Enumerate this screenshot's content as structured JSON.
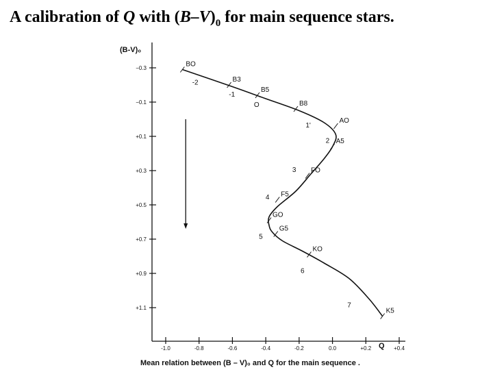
{
  "slide_title": {
    "prefix": "A calibration of ",
    "q": "Q",
    "mid": " with (",
    "bv": "B–V",
    "close": ")",
    "sub": "0",
    "suffix": " for main sequence stars."
  },
  "chart_data": {
    "type": "line",
    "title": "",
    "xlabel": "Q",
    "ylabel": "(B-V)₀",
    "caption": "Mean relation between (B – V)₀ and Q for the main sequence .",
    "xlim": [
      -1.1,
      0.42
    ],
    "ylim": [
      -0.3,
      1.28
    ],
    "y_inverted": true,
    "x_ticks": [
      -1.0,
      -0.8,
      -0.6,
      -0.4,
      -0.2,
      0.0,
      0.2,
      0.4
    ],
    "x_tick_labels": [
      "-1.0",
      "-0.8",
      "-0.6",
      "-0.4",
      "-0.2",
      "0.0",
      "+0.2",
      "+0.4"
    ],
    "y_ticks": [
      -0.3,
      -0.1,
      0.1,
      0.3,
      0.5,
      0.7,
      0.9,
      1.1
    ],
    "y_tick_labels": [
      "−0.3",
      "−0.1",
      "+0.1",
      "+0.3",
      "+0.5",
      "+0.7",
      "+0.9",
      "+1.1"
    ],
    "series": [
      {
        "x": [
          -0.9,
          -0.6,
          -0.4,
          -0.2,
          -0.05,
          0.02,
          0.0,
          -0.05,
          -0.13,
          -0.22,
          -0.33,
          -0.38,
          -0.38,
          -0.36,
          -0.3,
          -0.18,
          -0.05,
          0.1,
          0.22,
          0.3
        ],
        "y": [
          -0.29,
          -0.19,
          -0.12,
          -0.05,
          0.02,
          0.09,
          0.16,
          0.23,
          0.32,
          0.42,
          0.51,
          0.57,
          0.62,
          0.66,
          0.71,
          0.77,
          0.84,
          0.93,
          1.05,
          1.15
        ]
      }
    ],
    "spectral_labels": [
      {
        "text": "BO",
        "x": -0.9,
        "y": -0.29
      },
      {
        "text": "B3",
        "x": -0.62,
        "y": -0.2
      },
      {
        "text": "B5",
        "x": -0.45,
        "y": -0.14
      },
      {
        "text": "B8",
        "x": -0.22,
        "y": -0.06
      },
      {
        "text": "AO",
        "x": 0.02,
        "y": 0.04
      },
      {
        "text": "A5",
        "x": 0.0,
        "y": 0.16
      },
      {
        "text": "FO",
        "x": -0.15,
        "y": 0.33
      },
      {
        "text": "F5",
        "x": -0.33,
        "y": 0.47
      },
      {
        "text": "GO",
        "x": -0.38,
        "y": 0.59
      },
      {
        "text": "G5",
        "x": -0.34,
        "y": 0.67
      },
      {
        "text": "KO",
        "x": -0.14,
        "y": 0.79
      },
      {
        "text": "K5",
        "x": 0.3,
        "y": 1.15
      }
    ],
    "q_labels": [
      {
        "text": "-2",
        "x": -0.8,
        "y": -0.25
      },
      {
        "text": "-1",
        "x": -0.58,
        "y": -0.18
      },
      {
        "text": "O",
        "x": -0.43,
        "y": -0.12
      },
      {
        "text": "1'",
        "x": -0.12,
        "y": 0.0
      },
      {
        "text": "2",
        "x": 0.0,
        "y": 0.09
      },
      {
        "text": "3",
        "x": -0.2,
        "y": 0.26
      },
      {
        "text": "4",
        "x": -0.36,
        "y": 0.42
      },
      {
        "text": "5",
        "x": -0.4,
        "y": 0.65
      },
      {
        "text": "6",
        "x": -0.15,
        "y": 0.85
      },
      {
        "text": "7",
        "x": 0.13,
        "y": 1.05
      }
    ],
    "arrow": {
      "x": -0.88,
      "y_from": 0.0,
      "y_to": 0.64
    }
  }
}
